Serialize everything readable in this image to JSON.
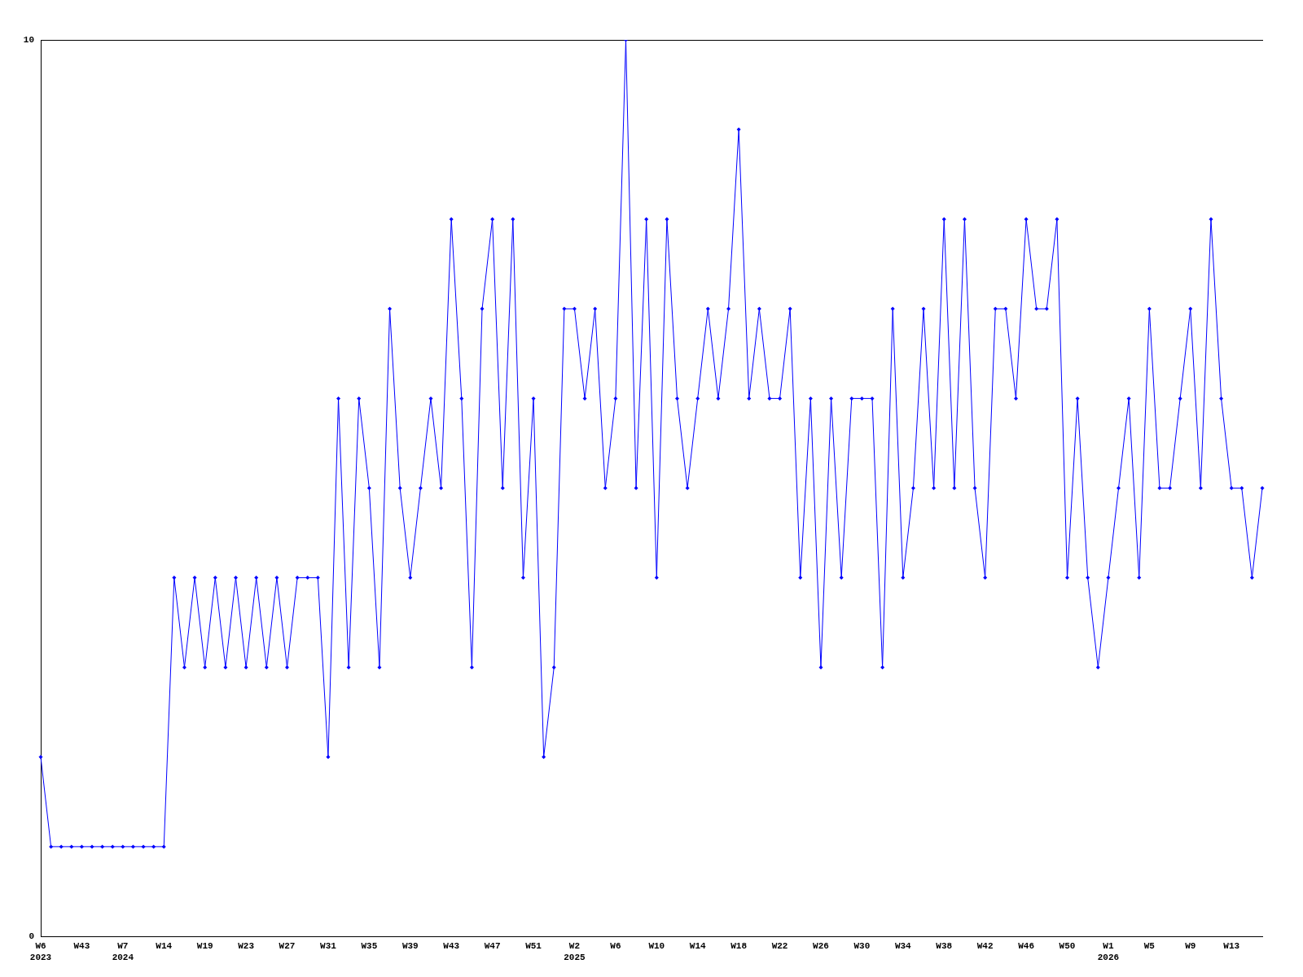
{
  "chart_data": {
    "type": "line",
    "categories": [
      "W6\n2023",
      null,
      null,
      null,
      "W43",
      null,
      null,
      null,
      "W7\n2024",
      null,
      null,
      null,
      "W14",
      null,
      null,
      null,
      "W19",
      null,
      null,
      null,
      "W23",
      null,
      null,
      null,
      "W27",
      null,
      null,
      null,
      "W31",
      null,
      null,
      null,
      "W35",
      null,
      null,
      null,
      "W39",
      null,
      null,
      null,
      "W43",
      null,
      null,
      null,
      "W47",
      null,
      null,
      null,
      "W51",
      null,
      null,
      null,
      "W2\n2025",
      null,
      null,
      null,
      "W6",
      null,
      null,
      null,
      "W10",
      null,
      null,
      null,
      "W14",
      null,
      null,
      null,
      "W18",
      null,
      null,
      null,
      "W22",
      null,
      null,
      null,
      "W26",
      null,
      null,
      null,
      "W30",
      null,
      null,
      null,
      "W34",
      null,
      null,
      null,
      "W38",
      null,
      null,
      null,
      "W42",
      null,
      null,
      null,
      "W46",
      null,
      null,
      null,
      "W50",
      null,
      null,
      null,
      "W1\n2026",
      null,
      null,
      null,
      "W5",
      null,
      null,
      null,
      "W9",
      null,
      null,
      null,
      "W13",
      null,
      null,
      null
    ],
    "values": [
      2,
      1,
      1,
      1,
      1,
      1,
      1,
      1,
      1,
      1,
      1,
      1,
      1,
      4,
      3,
      4,
      3,
      4,
      3,
      4,
      3,
      4,
      3,
      4,
      3,
      4,
      4,
      4,
      2,
      6,
      3,
      6,
      5,
      3,
      7,
      5,
      4,
      5,
      6,
      5,
      8,
      6,
      3,
      7,
      8,
      5,
      8,
      4,
      6,
      2,
      3,
      7,
      7,
      6,
      7,
      5,
      6,
      10,
      5,
      8,
      4,
      8,
      6,
      5,
      6,
      7,
      6,
      7,
      9,
      6,
      7,
      6,
      6,
      7,
      4,
      6,
      3,
      6,
      4,
      6,
      6,
      6,
      3,
      7,
      4,
      5,
      7,
      5,
      8,
      5,
      8,
      5,
      4,
      7,
      7,
      6,
      8,
      7,
      7,
      8,
      4,
      6,
      4,
      3,
      4,
      5,
      6,
      4,
      7,
      5,
      5,
      6,
      7,
      5,
      8,
      6,
      5,
      5,
      4,
      5
    ],
    "color": "#0000ff",
    "ylim": [
      0,
      10
    ],
    "yticks": [
      0,
      10
    ],
    "marker": "diamond",
    "line_style": "solid",
    "grid": false,
    "legend": false
  }
}
